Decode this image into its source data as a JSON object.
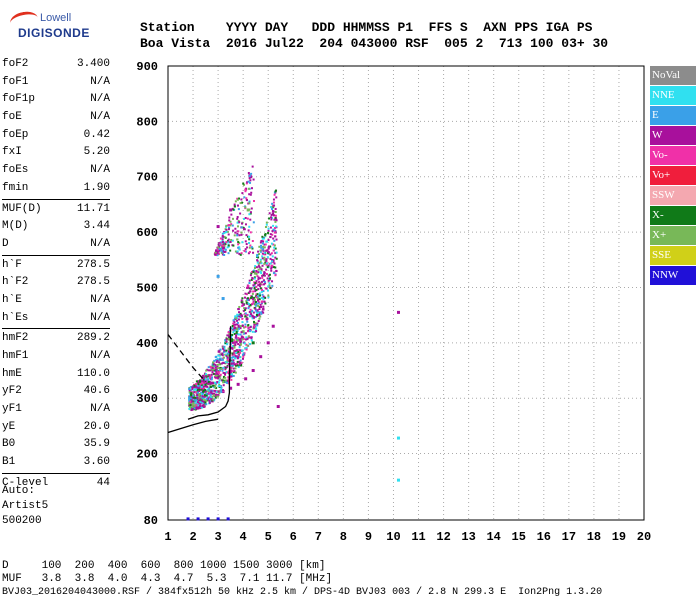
{
  "logo": {
    "line1": "Lowell",
    "line2": "DIGISONDE"
  },
  "header": {
    "labels": "Station    YYYY DAY   DDD HHMMSS P1  FFS S  AXN PPS IGA PS",
    "values": "Boa Vista  2016 Jul22  204 043000 RSF  005 2  713 100 03+ 30"
  },
  "params": [
    [
      [
        "foF2",
        "3.400"
      ],
      [
        "foF1",
        "N/A"
      ],
      [
        "foF1p",
        "N/A"
      ],
      [
        "foE",
        "N/A"
      ],
      [
        "foEp",
        "0.42"
      ],
      [
        "fxI",
        "5.20"
      ],
      [
        "foEs",
        "N/A"
      ],
      [
        "fmin",
        "1.90"
      ]
    ],
    [
      [
        "MUF(D)",
        "11.71"
      ],
      [
        "M(D)",
        "3.44"
      ],
      [
        "D",
        "N/A"
      ]
    ],
    [
      [
        "h`F",
        "278.5"
      ],
      [
        "h`F2",
        "278.5"
      ],
      [
        "h`E",
        "N/A"
      ],
      [
        "h`Es",
        "N/A"
      ]
    ],
    [
      [
        "hmF2",
        "289.2"
      ],
      [
        "hmF1",
        "N/A"
      ],
      [
        "hmE",
        "110.0"
      ],
      [
        "yF2",
        "40.6"
      ],
      [
        "yF1",
        "N/A"
      ],
      [
        "yE",
        "20.0"
      ],
      [
        "B0",
        "35.9"
      ],
      [
        "B1",
        "3.60"
      ]
    ],
    [
      [
        "C-level",
        "44"
      ]
    ]
  ],
  "auto": {
    "line1": "Auto:",
    "line2": "Artist5",
    "line3": "500200"
  },
  "footer": {
    "line1": "D     100  200  400  600  800 1000 1500 3000 [km]",
    "line2": "MUF   3.8  3.8  4.0  4.3  4.7  5.3  7.1 11.7 [MHz]",
    "line3": "BVJ03_2016204043000.RSF / 384fx512h 50 kHz 2.5 km / DPS-4D BVJ03 003 / 2.8 N 299.3 E  Ion2Png 1.3.20"
  },
  "legend": [
    {
      "label": "NoVal",
      "color": "#8c8c8c"
    },
    {
      "label": "NNE",
      "color": "#30e0f0"
    },
    {
      "label": "E",
      "color": "#3aa0e8"
    },
    {
      "label": "W",
      "color": "#a8109c"
    },
    {
      "label": "Vo-",
      "color": "#f030a8"
    },
    {
      "label": "Vo+",
      "color": "#f01e3c"
    },
    {
      "label": "SSW",
      "color": "#f4a8b0"
    },
    {
      "label": "X-",
      "color": "#107a18"
    },
    {
      "label": "X+",
      "color": "#78b858"
    },
    {
      "label": "SSE",
      "color": "#d0d018"
    },
    {
      "label": "NNW",
      "color": "#2010d8"
    }
  ],
  "chart_data": {
    "type": "scatter",
    "xlabel": "",
    "ylabel": "",
    "xlim": [
      1,
      20
    ],
    "ylim": [
      80,
      900
    ],
    "x_ticks": [
      "1",
      "2",
      "3",
      "4",
      "5",
      "6",
      "7",
      "8",
      "9",
      "10",
      "11",
      "12",
      "13",
      "14",
      "15",
      "16",
      "17",
      "18",
      "19",
      "20"
    ],
    "y_ticks": [
      "80",
      "200",
      "300",
      "400",
      "500",
      "600",
      "700",
      "800",
      "900"
    ],
    "grid": true,
    "series": [
      {
        "name": "W",
        "points": [
          [
            2.0,
            285
          ],
          [
            2.3,
            292
          ],
          [
            2.6,
            300
          ],
          [
            2.9,
            305
          ],
          [
            3.2,
            312
          ],
          [
            3.5,
            318
          ],
          [
            3.8,
            325
          ],
          [
            4.1,
            335
          ],
          [
            4.4,
            350
          ],
          [
            4.7,
            375
          ],
          [
            5.0,
            400
          ],
          [
            5.2,
            430
          ],
          [
            3.0,
            610
          ],
          [
            3.5,
            640
          ],
          [
            4.3,
            700
          ],
          [
            10.2,
            455
          ],
          [
            5.4,
            285
          ]
        ]
      },
      {
        "name": "E",
        "points": [
          [
            1.9,
            300
          ],
          [
            2.2,
            320
          ],
          [
            2.5,
            340
          ],
          [
            2.8,
            360
          ],
          [
            3.1,
            370
          ],
          [
            3.4,
            380
          ],
          [
            3.0,
            520
          ],
          [
            3.2,
            480
          ]
        ]
      },
      {
        "name": "NNE",
        "points": [
          [
            2.6,
            330
          ],
          [
            2.9,
            350
          ],
          [
            3.3,
            400
          ],
          [
            10.2,
            228
          ],
          [
            10.2,
            152
          ]
        ]
      },
      {
        "name": "X+",
        "points": [
          [
            2.4,
            300
          ],
          [
            3.0,
            340
          ],
          [
            3.6,
            380
          ],
          [
            4.0,
            420
          ],
          [
            4.5,
            470
          ],
          [
            4.2,
            640
          ]
        ]
      },
      {
        "name": "X-",
        "points": [
          [
            2.7,
            310
          ],
          [
            3.3,
            330
          ],
          [
            3.9,
            360
          ],
          [
            4.4,
            400
          ]
        ]
      },
      {
        "name": "NNW",
        "points": [
          [
            1.8,
            82
          ],
          [
            2.2,
            82
          ],
          [
            2.6,
            82
          ],
          [
            3.0,
            82
          ],
          [
            3.4,
            82
          ]
        ]
      }
    ],
    "lines": [
      {
        "name": "true height profile",
        "points": [
          [
            1.8,
            262
          ],
          [
            2.2,
            268
          ],
          [
            2.6,
            270
          ],
          [
            3.0,
            275
          ],
          [
            3.3,
            285
          ],
          [
            3.4,
            295
          ],
          [
            3.45,
            310
          ],
          [
            3.45,
            340
          ],
          [
            3.48,
            380
          ],
          [
            3.5,
            430
          ]
        ]
      },
      {
        "name": "dashed",
        "style": "dashed",
        "points": [
          [
            1.0,
            415
          ],
          [
            1.5,
            385
          ],
          [
            2.0,
            355
          ],
          [
            2.5,
            330
          ]
        ]
      },
      {
        "name": "lower",
        "points": [
          [
            1.0,
            238
          ],
          [
            1.5,
            245
          ],
          [
            2.0,
            252
          ],
          [
            2.5,
            258
          ],
          [
            3.0,
            262
          ]
        ]
      }
    ]
  }
}
